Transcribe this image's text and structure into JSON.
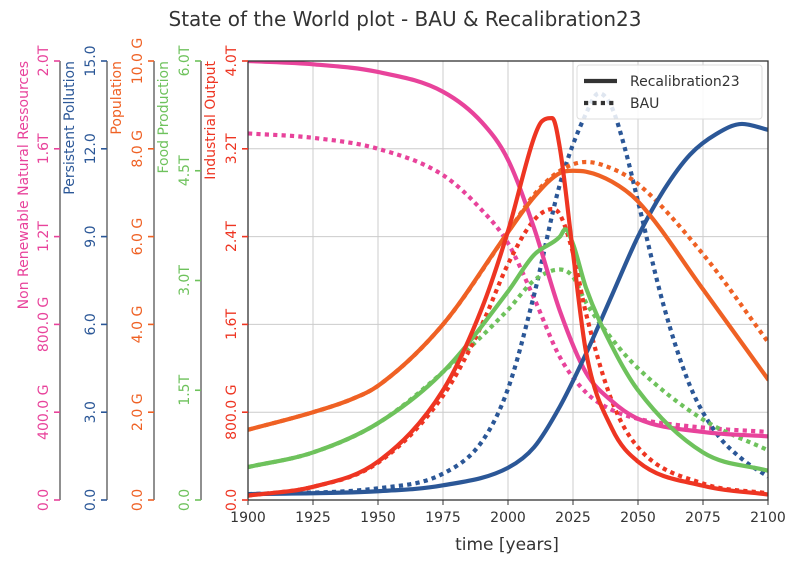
{
  "chart_data": {
    "type": "line",
    "title": "State of the World plot - BAU & Recalibration23",
    "xlabel": "time [years]",
    "xlim": [
      1900,
      2100
    ],
    "x_ticks": [
      "1900",
      "1925",
      "1950",
      "1975",
      "2000",
      "2025",
      "2050",
      "2075",
      "2100"
    ],
    "grid": true,
    "legend_position": "top-right",
    "legend": [
      {
        "label": "Recalibration23",
        "style": "solid"
      },
      {
        "label": "BAU",
        "style": "dotted"
      }
    ],
    "axes": [
      {
        "key": "nr",
        "label": "Non Renewable Natural Ressources",
        "color": "#e8439b",
        "ylim": [
          0,
          2000000000000.0
        ],
        "ticks": [
          [
            0,
            "0.0"
          ],
          [
            400000000000.0,
            "400.0 G"
          ],
          [
            800000000000.0,
            "800.0 G"
          ],
          [
            1200000000000.0,
            "1.2T"
          ],
          [
            1600000000000.0,
            "1.6T"
          ],
          [
            2000000000000.0,
            "2.0T"
          ]
        ]
      },
      {
        "key": "pp",
        "label": "Persistent Pollution",
        "color": "#2b5797",
        "ylim": [
          0,
          15
        ],
        "ticks": [
          [
            0,
            "0.0"
          ],
          [
            3,
            "3.0"
          ],
          [
            6,
            "6.0"
          ],
          [
            9,
            "9.0"
          ],
          [
            12,
            "12.0"
          ],
          [
            15,
            "15.0"
          ]
        ]
      },
      {
        "key": "pop",
        "label": "Population",
        "color": "#ef6124",
        "ylim": [
          0,
          10000000000.0
        ],
        "ticks": [
          [
            0,
            "0.0"
          ],
          [
            2000000000.0,
            "2.0 G"
          ],
          [
            4000000000.0,
            "4.0 G"
          ],
          [
            6000000000.0,
            "6.0 G"
          ],
          [
            8000000000.0,
            "8.0 G"
          ],
          [
            10000000000.0,
            "10.0 G"
          ]
        ]
      },
      {
        "key": "food",
        "label": "Food Production",
        "color": "#6ec25c",
        "ylim": [
          0,
          6000000000000.0
        ],
        "ticks": [
          [
            0,
            "0.0"
          ],
          [
            1500000000000.0,
            "1.5T"
          ],
          [
            3000000000000.0,
            "3.0T"
          ],
          [
            4500000000000.0,
            "4.5T"
          ],
          [
            6000000000000.0,
            "6.0T"
          ]
        ]
      },
      {
        "key": "io",
        "label": "Industrial Output",
        "color": "#ee3522",
        "ylim": [
          0,
          4000000000000.0
        ],
        "ticks": [
          [
            0,
            "0.0"
          ],
          [
            800000000000.0,
            "800.0 G"
          ],
          [
            1600000000000.0,
            "1.6T"
          ],
          [
            2400000000000.0,
            "2.4T"
          ],
          [
            3200000000000.0,
            "3.2T"
          ],
          [
            4000000000000.0,
            "4.0T"
          ]
        ]
      }
    ],
    "series": [
      {
        "axis": "nr",
        "scenario": "Recalibration23",
        "x": [
          1900,
          1925,
          1950,
          1975,
          1990,
          2000,
          2010,
          2020,
          2030,
          2040,
          2050,
          2075,
          2100
        ],
        "y": [
          2000000000000.0,
          1985000000000.0,
          1950000000000.0,
          1860000000000.0,
          1720000000000.0,
          1550000000000.0,
          1240000000000.0,
          860000000000.0,
          580000000000.0,
          450000000000.0,
          370000000000.0,
          310000000000.0,
          290000000000.0
        ]
      },
      {
        "axis": "nr",
        "scenario": "BAU",
        "x": [
          1900,
          1925,
          1950,
          1975,
          1990,
          2000,
          2010,
          2020,
          2030,
          2040,
          2050,
          2075,
          2100
        ],
        "y": [
          1670000000000.0,
          1650000000000.0,
          1600000000000.0,
          1480000000000.0,
          1320000000000.0,
          1170000000000.0,
          920000000000.0,
          650000000000.0,
          490000000000.0,
          410000000000.0,
          370000000000.0,
          330000000000.0,
          310000000000.0
        ]
      },
      {
        "axis": "pp",
        "scenario": "Recalibration23",
        "x": [
          1900,
          1950,
          1975,
          2000,
          2010,
          2020,
          2030,
          2040,
          2050,
          2060,
          2070,
          2080,
          2090,
          2100
        ],
        "y": [
          0.2,
          0.3,
          0.5,
          1.1,
          1.8,
          3.2,
          5.0,
          7.0,
          9.0,
          10.6,
          11.8,
          12.5,
          12.85,
          12.65
        ]
      },
      {
        "axis": "pp",
        "scenario": "BAU",
        "x": [
          1900,
          1950,
          1975,
          1990,
          2000,
          2010,
          2020,
          2030,
          2035,
          2040,
          2045,
          2050,
          2060,
          2070,
          2080,
          2090,
          2100
        ],
        "y": [
          0.2,
          0.4,
          0.9,
          2.0,
          3.8,
          7.0,
          10.8,
          13.2,
          13.9,
          13.4,
          12.0,
          10.2,
          6.6,
          3.9,
          2.3,
          1.4,
          0.8
        ]
      },
      {
        "axis": "pop",
        "scenario": "Recalibration23",
        "x": [
          1900,
          1925,
          1940,
          1950,
          1975,
          2000,
          2010,
          2020,
          2025,
          2030,
          2040,
          2050,
          2075,
          2100
        ],
        "y": [
          1600000000.0,
          2000000000.0,
          2300000000.0,
          2600000000.0,
          4000000000.0,
          6100000000.0,
          6900000000.0,
          7450000000.0,
          7500000000.0,
          7480000000.0,
          7250000000.0,
          6800000000.0,
          4800000000.0,
          2750000000.0
        ]
      },
      {
        "axis": "pop",
        "scenario": "BAU",
        "x": [
          1900,
          1925,
          1940,
          1950,
          1975,
          2000,
          2010,
          2020,
          2030,
          2040,
          2050,
          2075,
          2100
        ],
        "y": [
          1600000000.0,
          2000000000.0,
          2300000000.0,
          2600000000.0,
          4000000000.0,
          6100000000.0,
          6950000000.0,
          7500000000.0,
          7700000000.0,
          7550000000.0,
          7200000000.0,
          5600000000.0,
          3600000000.0
        ]
      },
      {
        "axis": "food",
        "scenario": "Recalibration23",
        "x": [
          1900,
          1925,
          1950,
          1975,
          2000,
          2010,
          2020,
          2022,
          2025,
          2030,
          2040,
          2050,
          2075,
          2100
        ],
        "y": [
          450000000000.0,
          650000000000.0,
          1050000000000.0,
          1750000000000.0,
          2850000000000.0,
          3350000000000.0,
          3600000000000.0,
          3700000000000.0,
          3500000000000.0,
          2900000000000.0,
          2100000000000.0,
          1500000000000.0,
          650000000000.0,
          400000000000.0
        ]
      },
      {
        "axis": "food",
        "scenario": "BAU",
        "x": [
          1900,
          1925,
          1950,
          1975,
          2000,
          2010,
          2020,
          2025,
          2030,
          2040,
          2050,
          2075,
          2100
        ],
        "y": [
          450000000000.0,
          650000000000.0,
          1050000000000.0,
          1750000000000.0,
          2600000000000.0,
          3000000000000.0,
          3150000000000.0,
          3050000000000.0,
          2700000000000.0,
          2200000000000.0,
          1800000000000.0,
          1100000000000.0,
          680000000000.0
        ]
      },
      {
        "axis": "io",
        "scenario": "Recalibration23",
        "x": [
          1900,
          1925,
          1950,
          1975,
          1990,
          2000,
          2010,
          2013,
          2017,
          2020,
          2025,
          2030,
          2040,
          2050,
          2075,
          2100
        ],
        "y": [
          40000000000.0,
          120000000000.0,
          350000000000.0,
          1000000000000.0,
          1750000000000.0,
          2450000000000.0,
          3300000000000.0,
          3450000000000.0,
          3480000000000.0,
          3200000000000.0,
          2250000000000.0,
          1350000000000.0,
          650000000000.0,
          350000000000.0,
          130000000000.0,
          50000000000.0
        ]
      },
      {
        "axis": "io",
        "scenario": "BAU",
        "x": [
          1900,
          1925,
          1950,
          1975,
          1990,
          2000,
          2010,
          2017,
          2020,
          2025,
          2030,
          2040,
          2050,
          2075,
          2100
        ],
        "y": [
          40000000000.0,
          120000000000.0,
          340000000000.0,
          950000000000.0,
          1600000000000.0,
          2150000000000.0,
          2550000000000.0,
          2650000000000.0,
          2600000000000.0,
          2250000000000.0,
          1700000000000.0,
          900000000000.0,
          480000000000.0,
          150000000000.0,
          60000000000.0
        ]
      }
    ]
  }
}
